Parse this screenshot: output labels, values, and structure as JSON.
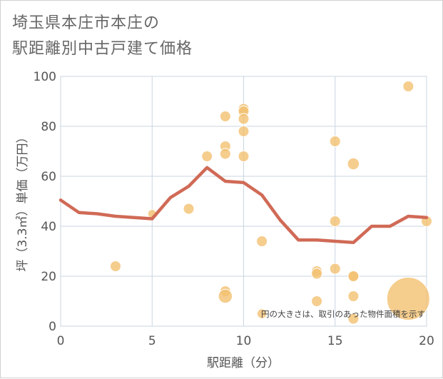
{
  "page": {
    "title_line1": "埼玉県本庄市本庄の",
    "title_line2": "駅距離別中古戸建て価格"
  },
  "chart_data": {
    "type": "scatter",
    "title": "埼玉県本庄市本庄の駅距離別中古戸建て価格",
    "xlabel": "駅距離（分）",
    "ylabel": "坪（3.3㎡）単価（万円）",
    "xlim": [
      0,
      20
    ],
    "ylim": [
      0,
      100
    ],
    "xticks": [
      0,
      5,
      10,
      15,
      20
    ],
    "yticks": [
      0,
      20,
      40,
      60,
      80,
      100
    ],
    "xtick_labels": [
      "0",
      "5",
      "10",
      "15",
      "20"
    ],
    "ytick_labels": [
      "0",
      "20",
      "40",
      "60",
      "80",
      "100"
    ],
    "note": "円の大きさは、取引のあった物件面積を示す",
    "colors": {
      "bubble": "#f2c170",
      "line": "#d06a56",
      "grid": "#c9d5e2"
    },
    "points": [
      {
        "x": 3,
        "y": 24,
        "s": 1.0
      },
      {
        "x": 5,
        "y": 45,
        "s": 0.8
      },
      {
        "x": 7,
        "y": 47,
        "s": 1.0
      },
      {
        "x": 8,
        "y": 68,
        "s": 1.0
      },
      {
        "x": 9,
        "y": 84,
        "s": 1.0
      },
      {
        "x": 9,
        "y": 72,
        "s": 1.0
      },
      {
        "x": 9,
        "y": 69,
        "s": 1.0
      },
      {
        "x": 9,
        "y": 14,
        "s": 1.0
      },
      {
        "x": 9,
        "y": 12,
        "s": 1.3
      },
      {
        "x": 10,
        "y": 87,
        "s": 1.0
      },
      {
        "x": 10,
        "y": 86,
        "s": 1.0
      },
      {
        "x": 10,
        "y": 83,
        "s": 1.0
      },
      {
        "x": 10,
        "y": 78,
        "s": 1.0
      },
      {
        "x": 10,
        "y": 68,
        "s": 1.0
      },
      {
        "x": 11,
        "y": 34,
        "s": 1.0
      },
      {
        "x": 11,
        "y": 5,
        "s": 0.9
      },
      {
        "x": 14,
        "y": 22,
        "s": 1.0
      },
      {
        "x": 14,
        "y": 21,
        "s": 1.0
      },
      {
        "x": 14,
        "y": 10,
        "s": 1.0
      },
      {
        "x": 15,
        "y": 74,
        "s": 1.0
      },
      {
        "x": 15,
        "y": 42,
        "s": 1.0
      },
      {
        "x": 15,
        "y": 23,
        "s": 1.0
      },
      {
        "x": 16,
        "y": 65,
        "s": 1.1
      },
      {
        "x": 16,
        "y": 20,
        "s": 1.0
      },
      {
        "x": 16,
        "y": 20,
        "s": 1.0
      },
      {
        "x": 16,
        "y": 12,
        "s": 1.0
      },
      {
        "x": 16,
        "y": 3,
        "s": 1.0
      },
      {
        "x": 19,
        "y": 96,
        "s": 1.0
      },
      {
        "x": 19,
        "y": 11,
        "s": 4.0
      },
      {
        "x": 20,
        "y": 42,
        "s": 1.0
      }
    ],
    "trend_line": {
      "x": [
        0,
        1,
        2,
        3,
        4,
        5,
        6,
        7,
        8,
        9,
        10,
        11,
        12,
        13,
        14,
        15,
        16,
        17,
        18,
        19,
        20
      ],
      "y": [
        50.5,
        45.5,
        45,
        44,
        43.5,
        43,
        51.5,
        56,
        63.5,
        58,
        57.5,
        52.5,
        42.5,
        34.5,
        34.5,
        34,
        33.5,
        40,
        40,
        44,
        43.5
      ]
    }
  }
}
